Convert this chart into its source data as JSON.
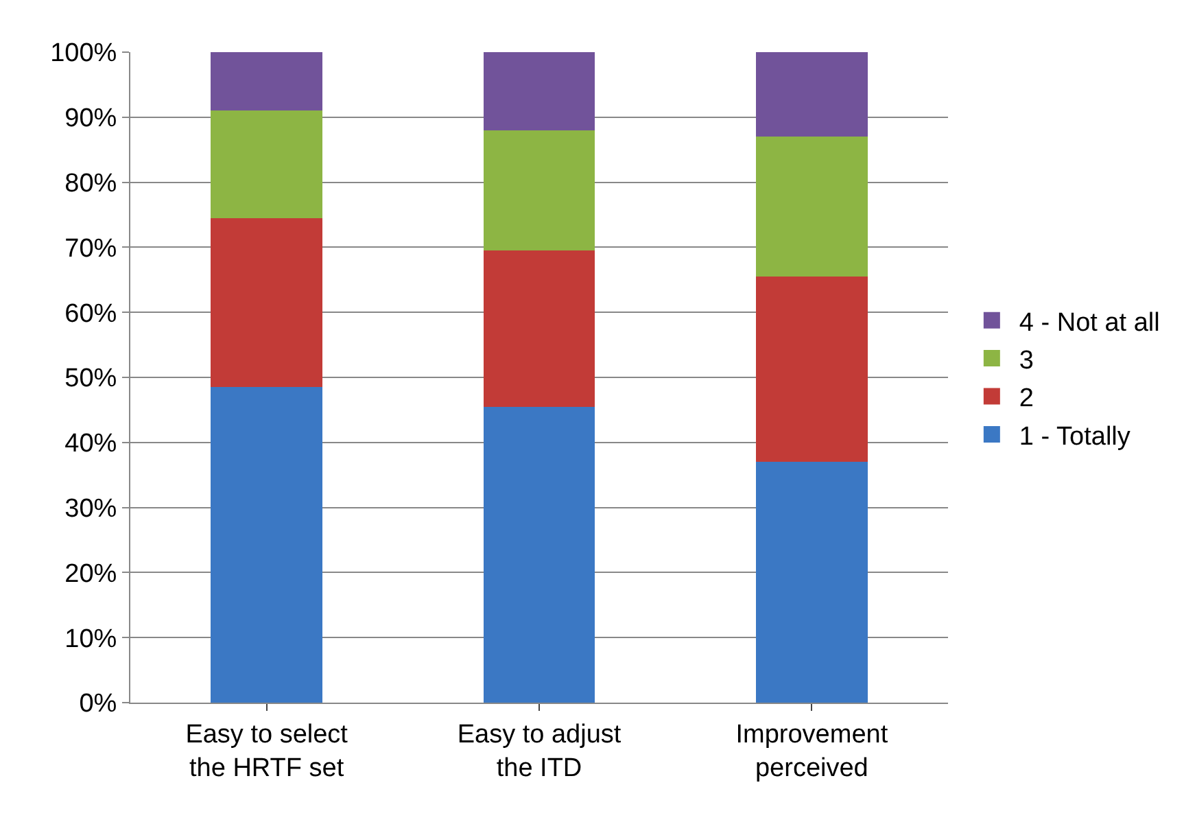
{
  "chart_data": {
    "type": "bar",
    "stacked": true,
    "categories": [
      "Easy to select the HRTF set",
      "Easy to adjust the ITD",
      "Improvement perceived"
    ],
    "series": [
      {
        "name": "1 - Totally",
        "color": "#3b78c4",
        "values": [
          48.5,
          45.5,
          37
        ]
      },
      {
        "name": "2",
        "color": "#c23b37",
        "values": [
          26,
          24,
          28.5
        ]
      },
      {
        "name": "3",
        "color": "#8db544",
        "values": [
          16.5,
          18.5,
          21.5
        ]
      },
      {
        "name": "4 - Not at all",
        "color": "#71539a",
        "values": [
          9,
          12,
          13
        ]
      }
    ],
    "ylim": [
      0,
      100
    ],
    "yticks": [
      {
        "value": 0,
        "label": "0%"
      },
      {
        "value": 10,
        "label": "10%"
      },
      {
        "value": 20,
        "label": "20%"
      },
      {
        "value": 30,
        "label": "30%"
      },
      {
        "value": 40,
        "label": "40%"
      },
      {
        "value": 50,
        "label": "50%"
      },
      {
        "value": 60,
        "label": "60%"
      },
      {
        "value": 70,
        "label": "70%"
      },
      {
        "value": 80,
        "label": "80%"
      },
      {
        "value": 90,
        "label": "90%"
      },
      {
        "value": 100,
        "label": "100%"
      }
    ],
    "grid": "y",
    "legend": "right"
  }
}
